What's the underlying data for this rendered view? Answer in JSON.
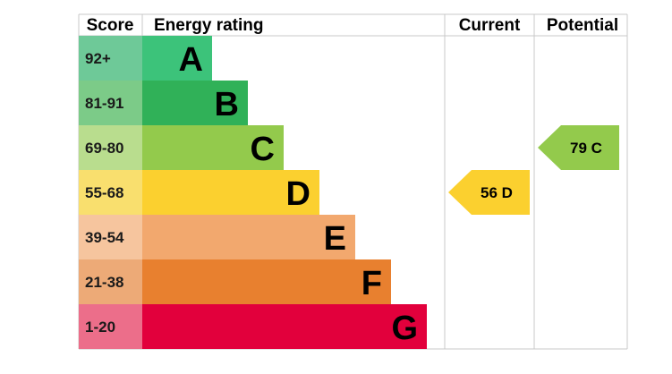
{
  "headers": {
    "score": "Score",
    "rating": "Energy rating",
    "current": "Current",
    "potential": "Potential"
  },
  "chart_data": {
    "type": "bar",
    "title": "",
    "categories": [
      "A",
      "B",
      "C",
      "D",
      "E",
      "F",
      "G"
    ],
    "bands": [
      {
        "letter": "A",
        "score": "92+",
        "color": "#3cc37a",
        "score_bg": "#6ec998",
        "value": 1
      },
      {
        "letter": "B",
        "score": "81-91",
        "color": "#30b158",
        "score_bg": "#7ccb88",
        "value": 2
      },
      {
        "letter": "C",
        "score": "69-80",
        "color": "#93ca4c",
        "score_bg": "#b9dd8e",
        "value": 3
      },
      {
        "letter": "D",
        "score": "55-68",
        "color": "#fbd02f",
        "score_bg": "#f9df6e",
        "value": 4
      },
      {
        "letter": "E",
        "score": "39-54",
        "color": "#f2a86e",
        "score_bg": "#f6c59e",
        "value": 5
      },
      {
        "letter": "F",
        "score": "21-38",
        "color": "#e8802f",
        "score_bg": "#edaa77",
        "value": 6
      },
      {
        "letter": "G",
        "score": "1-20",
        "color": "#e2003c",
        "score_bg": "#ec6e8a",
        "value": 7
      }
    ],
    "current": {
      "value": 56,
      "band": "D",
      "label": "56 D",
      "color": "#fbd02f"
    },
    "potential": {
      "value": 79,
      "band": "C",
      "label": "79 C",
      "color": "#93ca4c"
    },
    "grid_color": "#c8c8c8"
  }
}
